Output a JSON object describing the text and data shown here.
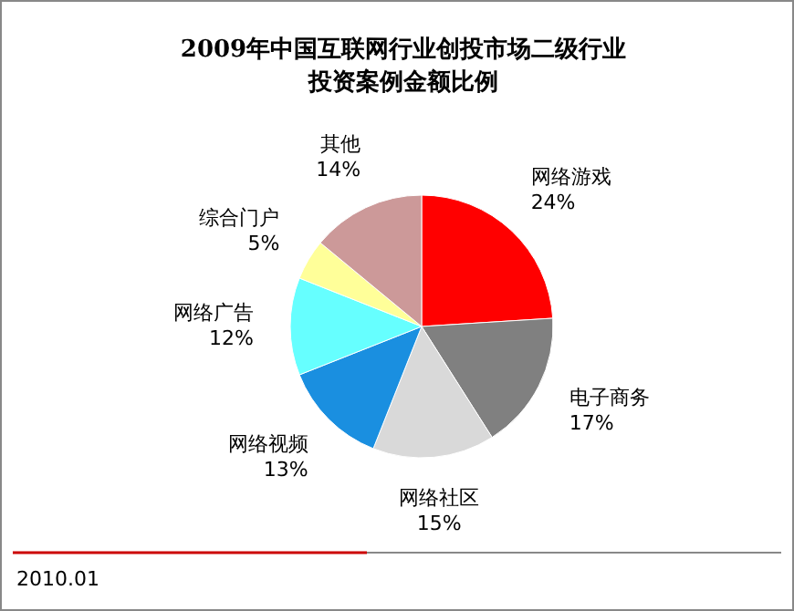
{
  "chart_data": {
    "type": "pie",
    "title": "2009年中国互联网行业创投市场二级行业投资案例金额比例",
    "categories": [
      "网络游戏",
      "电子商务",
      "网络社区",
      "网络视频",
      "网络广告",
      "综合门户",
      "其他"
    ],
    "values": [
      24,
      17,
      15,
      13,
      12,
      5,
      14
    ],
    "value_labels": [
      "24%",
      "17%",
      "15%",
      "13%",
      "12%",
      "5%",
      "14%"
    ],
    "colors": [
      "#ff0000",
      "#808080",
      "#d9d9d9",
      "#1a8fe0",
      "#66ffff",
      "#ffff99",
      "#cc9999"
    ],
    "annotations": [
      "2010.01"
    ]
  }
}
